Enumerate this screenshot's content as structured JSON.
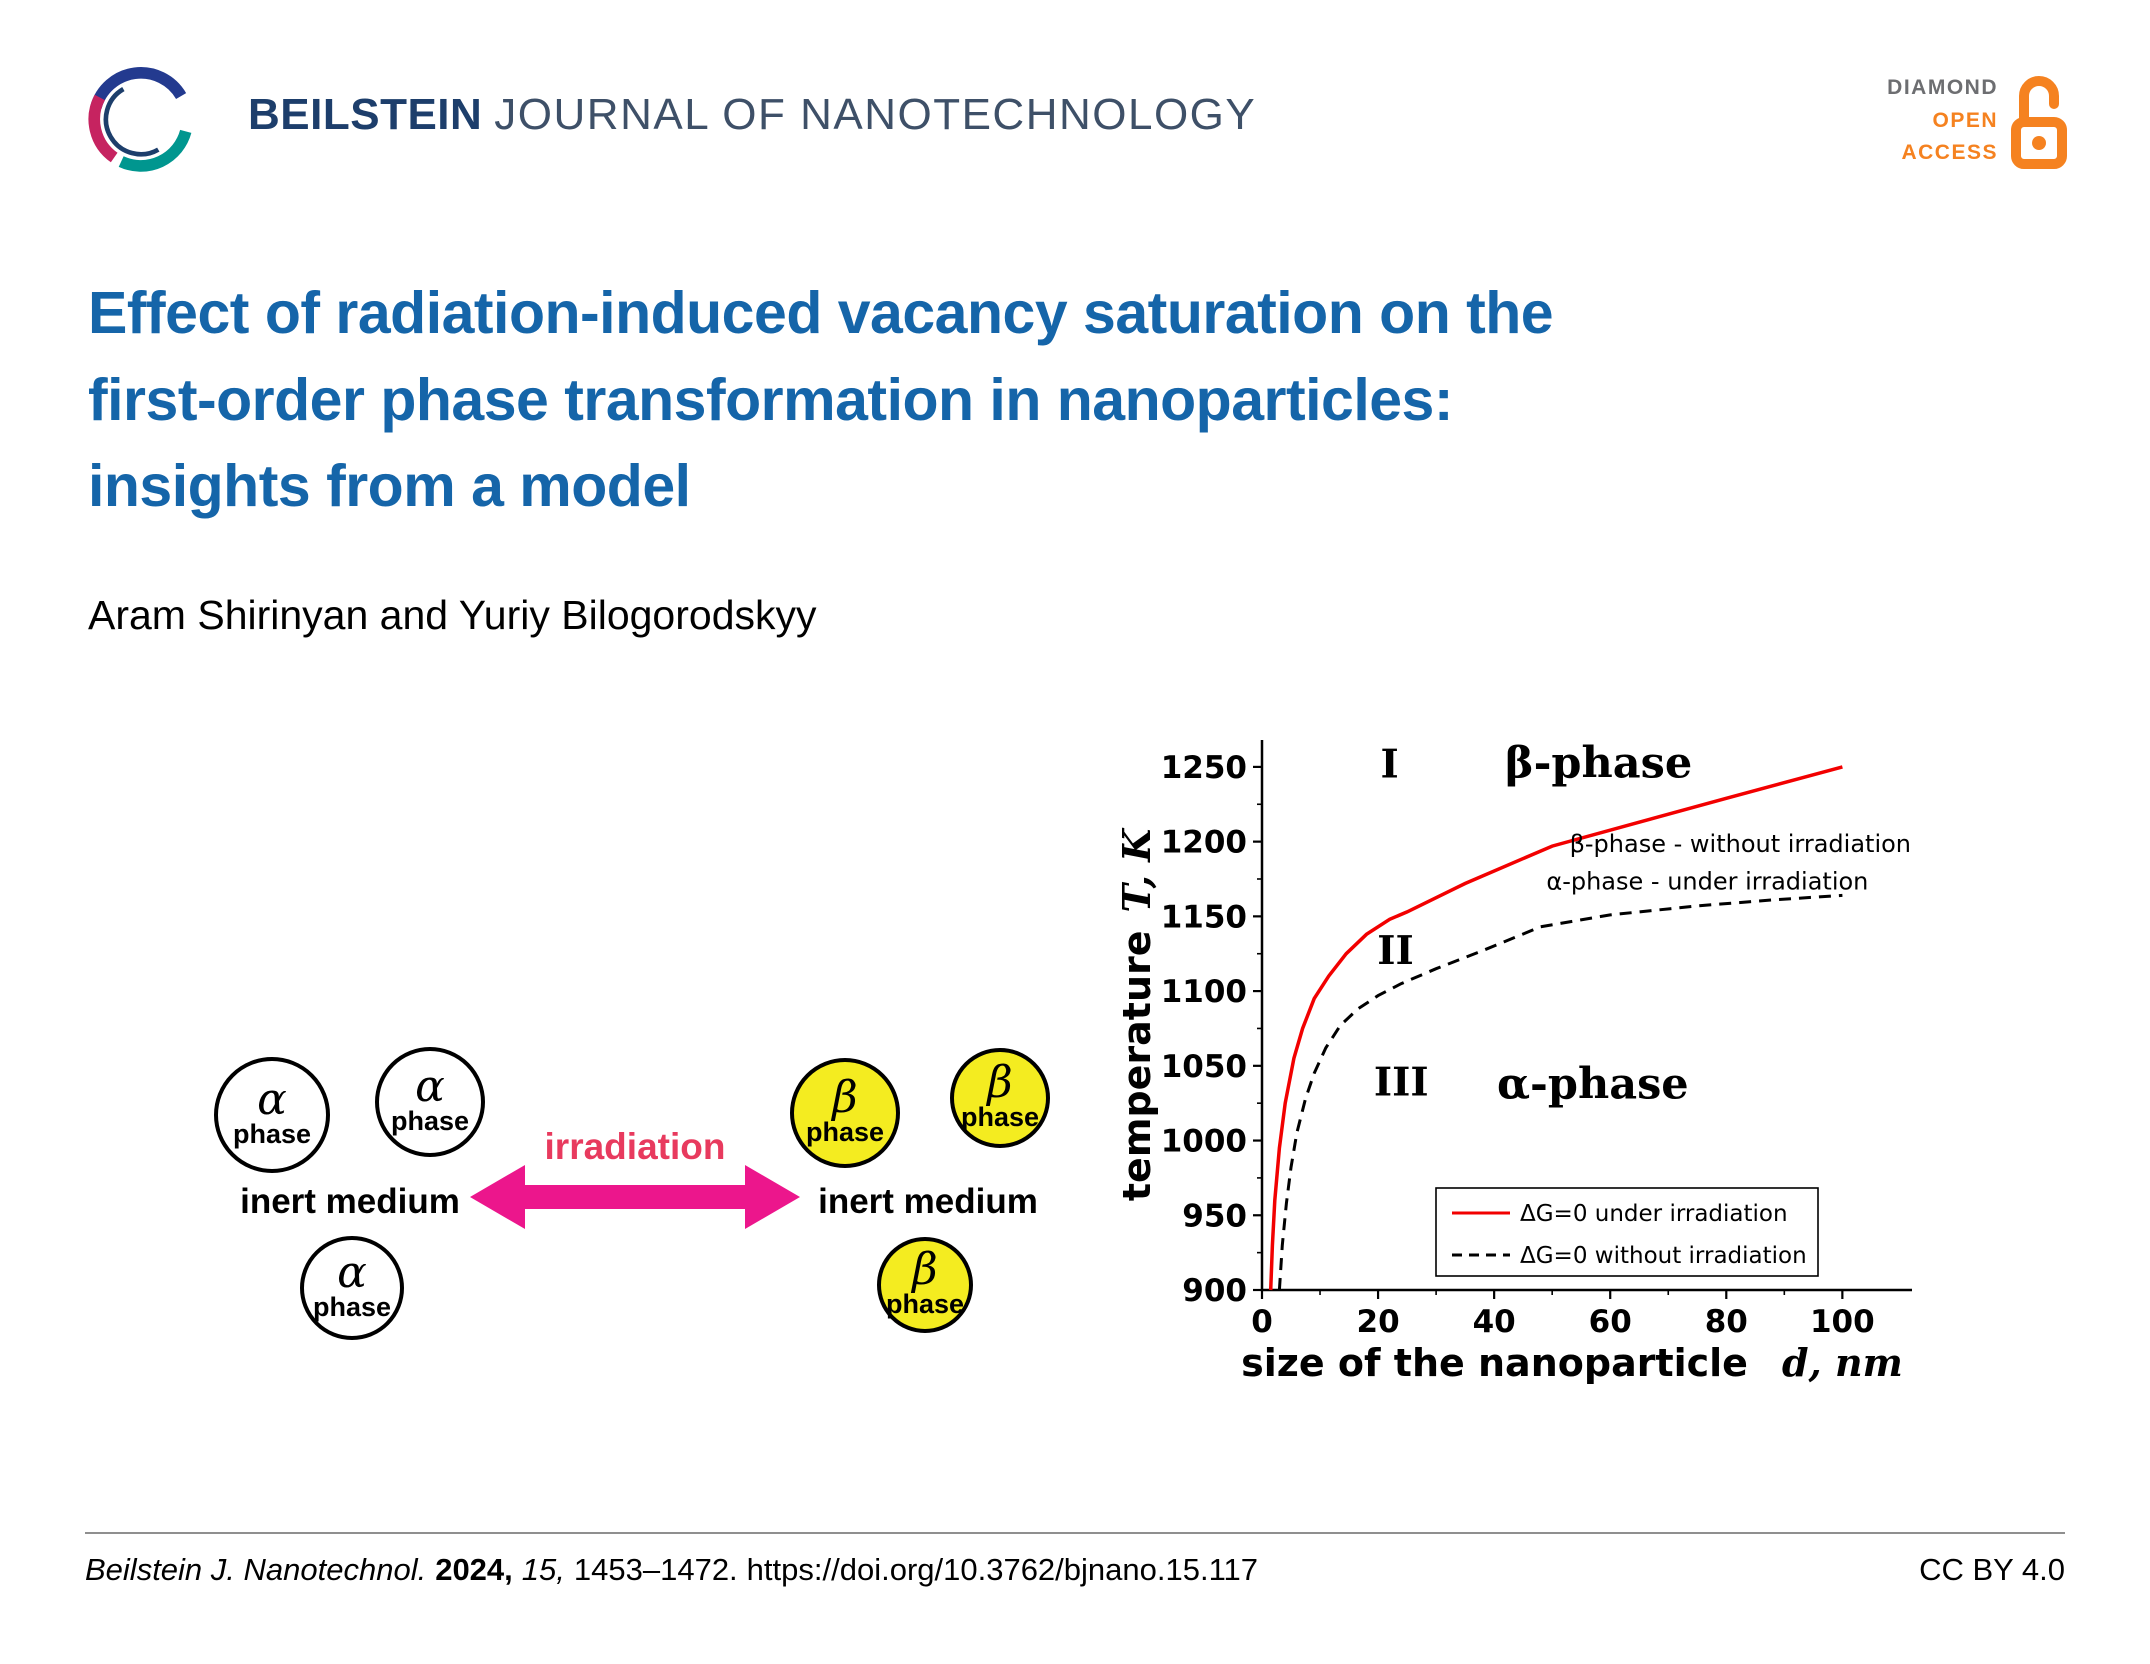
{
  "colors": {
    "title-blue": "#1565a9",
    "journal-navy": "#1d3e6b",
    "journal-gray": "#3e5068",
    "oa-orange": "#f58220",
    "oa-gray": "#6d6e71",
    "beta-yellow": "#f4ec20",
    "arrow-magenta": "#ec168c",
    "irradiation-red": "#e83a5e"
  },
  "header": {
    "journal_name_bold": "BEILSTEIN",
    "journal_name_rest": "JOURNAL OF NANOTECHNOLOGY",
    "open_access": {
      "line1": "DIAMOND",
      "line2": "OPEN",
      "line3": "ACCESS"
    }
  },
  "article": {
    "title_lines": [
      "Effect of radiation-induced vacancy saturation on the",
      "first-order phase transformation in nanoparticles:",
      "insights from a model"
    ],
    "authors": "Aram Shirinyan and Yuriy Bilogorodskyy"
  },
  "diagram": {
    "alpha": {
      "symbol": "α",
      "label": "phase"
    },
    "beta": {
      "symbol": "β",
      "label": "phase"
    },
    "left_medium": "inert medium",
    "right_medium": "inert medium",
    "arrow_label": "irradiation"
  },
  "chart_data": {
    "type": "line",
    "title": "",
    "xlabel": "size of the nanoparticle",
    "xlabel_unit": "d, nm",
    "ylabel": "temperature",
    "ylabel_unit": "T, K",
    "xlim": [
      0,
      112
    ],
    "ylim": [
      900,
      1268
    ],
    "xticks": [
      0,
      20,
      40,
      60,
      80,
      100
    ],
    "yticks": [
      900,
      950,
      1000,
      1050,
      1100,
      1150,
      1200,
      1250
    ],
    "grid": false,
    "legend_position": "bottom-right",
    "series": [
      {
        "name": "ΔG=0 under irradiation",
        "color": "#f20000",
        "style": "solid",
        "points": [
          [
            1.5,
            900
          ],
          [
            1.8,
            930
          ],
          [
            2.2,
            960
          ],
          [
            3,
            995
          ],
          [
            4,
            1025
          ],
          [
            5.5,
            1055
          ],
          [
            7,
            1075
          ],
          [
            9,
            1095
          ],
          [
            11.5,
            1110
          ],
          [
            14.5,
            1125
          ],
          [
            18,
            1138
          ],
          [
            22,
            1148
          ],
          [
            25,
            1153
          ],
          [
            35,
            1172
          ],
          [
            50,
            1197
          ],
          [
            65,
            1213
          ],
          [
            80,
            1229
          ],
          [
            100,
            1250
          ]
        ]
      },
      {
        "name": "ΔG=0 without irradiation",
        "color": "#000000",
        "style": "dashed",
        "points": [
          [
            3,
            900
          ],
          [
            3.5,
            930
          ],
          [
            4.2,
            958
          ],
          [
            5,
            982
          ],
          [
            6,
            1005
          ],
          [
            7.5,
            1028
          ],
          [
            9,
            1045
          ],
          [
            11,
            1062
          ],
          [
            13.5,
            1077
          ],
          [
            16.5,
            1088
          ],
          [
            20,
            1097
          ],
          [
            24,
            1105
          ],
          [
            30,
            1115
          ],
          [
            38,
            1127
          ],
          [
            48,
            1143
          ],
          [
            60,
            1151
          ],
          [
            75,
            1157
          ],
          [
            88,
            1161
          ],
          [
            100,
            1164
          ]
        ]
      }
    ],
    "region_labels": [
      {
        "text": "I",
        "x": 22,
        "y": 1243
      },
      {
        "text": "II",
        "x": 23,
        "y": 1118
      },
      {
        "text": "III",
        "x": 24,
        "y": 1030
      }
    ],
    "phase_labels": [
      {
        "text": "β-phase",
        "x": 58,
        "y": 1243
      },
      {
        "text": "α-phase",
        "x": 57,
        "y": 1028
      }
    ],
    "annotations": [
      {
        "text": "β-phase - without irradiation",
        "x": 53,
        "y": 1193
      },
      {
        "text": "α-phase - under irradiation",
        "x": 49,
        "y": 1168
      }
    ]
  },
  "footer": {
    "citation_journal": "Beilstein J. Nanotechnol.",
    "citation_year": "2024,",
    "citation_volume": "15,",
    "citation_pages": "1453–1472.",
    "citation_doi": "https://doi.org/10.3762/bjnano.15.117",
    "license": "CC BY 4.0"
  }
}
